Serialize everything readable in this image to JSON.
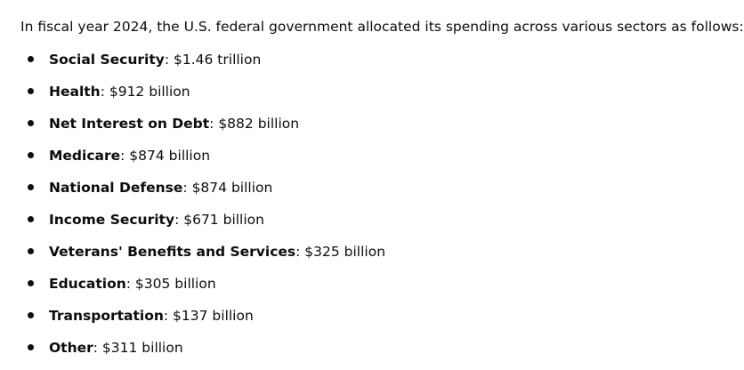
{
  "intro": "In fiscal year 2024, the U.S. federal government allocated its spending across various sectors as follows:",
  "items": [
    {
      "label": "Social Security",
      "value": ": $1.46 trillion"
    },
    {
      "label": "Health",
      "value": ": $912 billion"
    },
    {
      "label": "Net Interest on Debt",
      "value": ": $882 billion"
    },
    {
      "label": "Medicare",
      "value": ": $874 billion"
    },
    {
      "label": "National Defense",
      "value": ": $874 billion"
    },
    {
      "label": "Income Security",
      "value": ": $671 billion"
    },
    {
      "label": "Veterans' Benefits and Services",
      "value": ": $325 billion"
    },
    {
      "label": "Education",
      "value": ": $305 billion"
    },
    {
      "label": "Transportation",
      "value": ": $137 billion"
    },
    {
      "label": "Other",
      "value": ": $311 billion"
    }
  ]
}
